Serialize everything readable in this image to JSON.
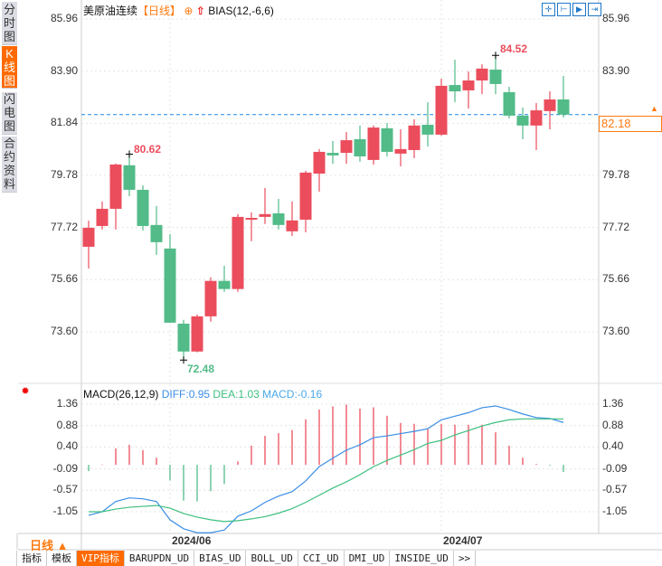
{
  "sidebar": {
    "items": [
      {
        "label": "分时图",
        "active": false
      },
      {
        "label": "K线图",
        "active": true
      },
      {
        "label": "闪电图",
        "active": false
      },
      {
        "label": "合约资料",
        "active": false
      }
    ]
  },
  "header": {
    "instrument": "美原油连续",
    "period": "【日线】",
    "add_icon": "⊕",
    "arrow_icon": "red-up-arrow",
    "indicator": "BIAS(12,-6,6)"
  },
  "toolbar_icons": [
    "crosshair-icon",
    "zoom-range-icon",
    "play-icon",
    "exit-right-icon"
  ],
  "price_axis": {
    "labels": [
      "85.96",
      "83.90",
      "81.84",
      "79.78",
      "77.72",
      "75.66",
      "73.60"
    ]
  },
  "current_price": "82.18",
  "annotations": {
    "high1": "80.62",
    "low": "72.48",
    "high2": "84.52"
  },
  "macd": {
    "title": "MACD(26,12,9)",
    "diff": "DIFF:0.95",
    "dea": "DEA:1.03",
    "macd": "MACD:-0.16",
    "axis_labels": [
      "1.36",
      "0.88",
      "0.40",
      "-0.09",
      "-0.57",
      "-1.05"
    ]
  },
  "x_axis": {
    "labels": [
      "2024/06",
      "2024/07"
    ]
  },
  "period_selector": "日线 ▲",
  "tabs": [
    "指标",
    "模板",
    "VIP指标",
    "BARUPDN_UD",
    "BIAS_UD",
    "BOLL_UD",
    "CCI_UD",
    "DMI_UD",
    "INSIDE_UD",
    ">>"
  ],
  "colors": {
    "up": "#eb4d5c",
    "down": "#52bb88",
    "diff": "#3a8ee6",
    "dea": "#3dbf7f",
    "accent": "#ff6a00",
    "price_line": "#1e88e5"
  },
  "chart_data": [
    {
      "type": "candlestick",
      "title": "美原油连续",
      "ylim": [
        72.3,
        86.3
      ],
      "y_ticks": [
        85.96,
        83.9,
        81.84,
        79.78,
        77.72,
        75.66,
        73.6
      ],
      "x_ticks": [
        "2024/06",
        "2024/07"
      ],
      "fields": [
        "open",
        "high",
        "low",
        "close"
      ],
      "ohlc": [
        [
          76.96,
          77.99,
          76.1,
          77.71
        ],
        [
          77.78,
          78.75,
          77.64,
          78.46
        ],
        [
          78.46,
          80.25,
          77.64,
          80.21
        ],
        [
          80.18,
          80.62,
          78.96,
          79.21
        ],
        [
          79.21,
          79.39,
          77.6,
          77.78
        ],
        [
          77.82,
          78.57,
          76.64,
          77.14
        ],
        [
          76.89,
          77.46,
          73.95,
          73.96
        ],
        [
          73.92,
          74.07,
          72.48,
          72.82
        ],
        [
          72.82,
          74.28,
          72.79,
          74.21
        ],
        [
          74.21,
          75.75,
          74.0,
          75.61
        ],
        [
          75.61,
          76.21,
          75.18,
          75.29
        ],
        [
          75.29,
          78.25,
          75.18,
          78.14
        ],
        [
          78.03,
          78.32,
          77.18,
          78.1
        ],
        [
          78.14,
          79.28,
          77.86,
          78.25
        ],
        [
          78.28,
          78.85,
          77.64,
          77.82
        ],
        [
          77.57,
          78.75,
          77.39,
          78.0
        ],
        [
          78.03,
          79.96,
          77.53,
          79.89
        ],
        [
          79.85,
          80.82,
          79.14,
          80.71
        ],
        [
          80.67,
          81.14,
          80.24,
          80.57
        ],
        [
          80.67,
          81.49,
          80.24,
          81.17
        ],
        [
          81.21,
          81.75,
          80.32,
          80.53
        ],
        [
          80.39,
          81.75,
          80.21,
          81.67
        ],
        [
          81.64,
          81.85,
          80.53,
          80.71
        ],
        [
          80.64,
          81.6,
          80.14,
          80.82
        ],
        [
          80.78,
          82.0,
          80.46,
          81.75
        ],
        [
          81.78,
          82.67,
          80.92,
          81.39
        ],
        [
          81.39,
          83.6,
          81.35,
          83.32
        ],
        [
          83.35,
          84.35,
          82.67,
          83.1
        ],
        [
          83.14,
          83.89,
          82.42,
          83.53
        ],
        [
          83.53,
          84.17,
          82.99,
          84.0
        ],
        [
          83.96,
          84.52,
          82.99,
          83.39
        ],
        [
          83.07,
          83.28,
          82.03,
          82.14
        ],
        [
          82.14,
          82.46,
          81.21,
          81.75
        ],
        [
          81.75,
          82.64,
          80.78,
          82.35
        ],
        [
          82.32,
          83.1,
          81.6,
          82.78
        ],
        [
          82.78,
          83.71,
          82.07,
          82.18
        ]
      ],
      "last_price": 82.18
    },
    {
      "type": "bar+line",
      "title": "MACD(26,12,9)",
      "ylim": [
        -1.6,
        1.5
      ],
      "y_ticks": [
        1.36,
        0.88,
        0.4,
        -0.09,
        -0.57,
        -1.05
      ],
      "histogram": [
        -0.14,
        0.01,
        0.37,
        0.45,
        0.33,
        0.16,
        -0.35,
        -0.8,
        -0.82,
        -0.59,
        -0.43,
        0.08,
        0.43,
        0.65,
        0.71,
        0.78,
        1.02,
        1.24,
        1.31,
        1.35,
        1.26,
        1.29,
        1.1,
        0.94,
        0.92,
        0.8,
        0.92,
        0.9,
        0.9,
        0.9,
        0.73,
        0.43,
        0.16,
        0.02,
        -0.02,
        -0.16
      ],
      "series": [
        {
          "name": "DIFF",
          "values": [
            -1.13,
            -1.05,
            -0.82,
            -0.74,
            -0.76,
            -0.82,
            -1.23,
            -1.43,
            -1.52,
            -1.52,
            -1.46,
            -1.15,
            -1.03,
            -0.84,
            -0.7,
            -0.6,
            -0.36,
            -0.04,
            0.15,
            0.33,
            0.45,
            0.61,
            0.65,
            0.7,
            0.75,
            0.81,
            1.01,
            1.09,
            1.17,
            1.28,
            1.32,
            1.24,
            1.14,
            1.06,
            1.04,
            0.95
          ]
        },
        {
          "name": "DEA",
          "values": [
            -1.05,
            -1.05,
            -0.99,
            -0.95,
            -0.93,
            -0.91,
            -0.97,
            -1.09,
            -1.17,
            -1.23,
            -1.27,
            -1.25,
            -1.21,
            -1.16,
            -1.08,
            -0.98,
            -0.84,
            -0.68,
            -0.52,
            -0.38,
            -0.22,
            -0.04,
            0.1,
            0.22,
            0.34,
            0.48,
            0.55,
            0.67,
            0.77,
            0.87,
            0.95,
            1.01,
            1.03,
            1.03,
            1.03,
            1.03
          ]
        }
      ]
    }
  ]
}
